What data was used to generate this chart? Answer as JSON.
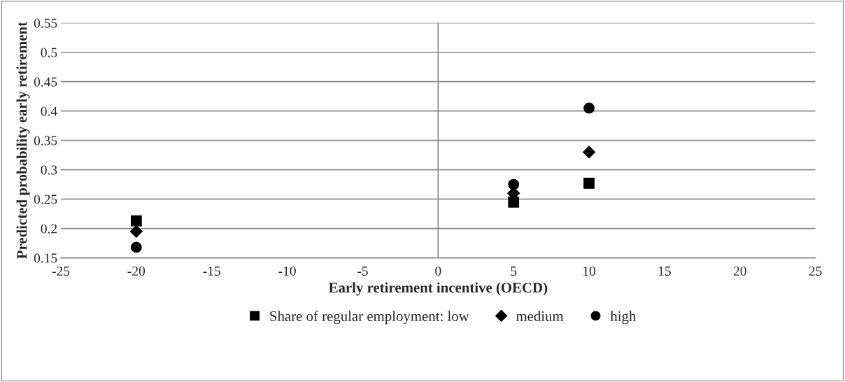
{
  "chart_data": {
    "type": "scatter",
    "xlabel": "Early retirement incentive (OECD)",
    "ylabel": "Predicted probability early retirement",
    "x": [
      -20,
      5,
      10
    ],
    "series": [
      {
        "name": "Share of regular employment: low",
        "color": "#000000",
        "marker": "square",
        "values": [
          0.213,
          0.245,
          0.277
        ]
      },
      {
        "name": "medium",
        "color": "#000000",
        "marker": "diamond",
        "values": [
          0.195,
          0.26,
          0.33
        ]
      },
      {
        "name": "high",
        "color": "#000000",
        "marker": "circle",
        "values": [
          0.168,
          0.275,
          0.405
        ]
      }
    ],
    "xlim": [
      -25,
      25
    ],
    "xticks": [
      -25,
      -20,
      -15,
      -10,
      -5,
      0,
      5,
      10,
      15,
      20,
      25
    ],
    "ylim": [
      0.15,
      0.55
    ],
    "yticks": [
      0.15,
      0.2,
      0.25,
      0.3,
      0.35,
      0.4,
      0.45,
      0.5,
      0.55
    ],
    "ref_lines": [
      {
        "axis": "x",
        "value": 0,
        "color": "#8c8c8c"
      }
    ],
    "grid": "y",
    "legend": "bottom"
  }
}
